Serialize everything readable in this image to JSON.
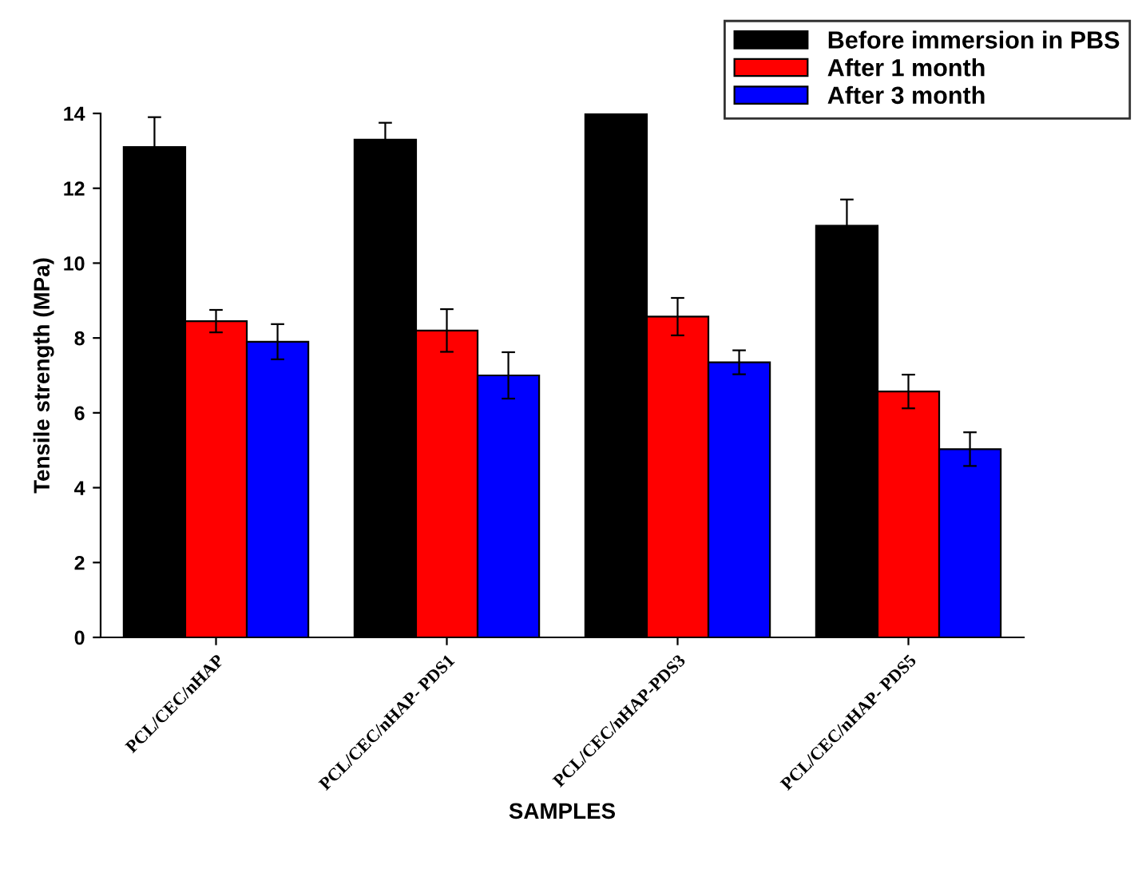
{
  "chart_data": {
    "type": "bar",
    "xlabel": "SAMPLES",
    "ylabel": "Tensile strength (MPa)",
    "categories": [
      "PCL/CEC/nHAP",
      "PCL/CEC/nHAP- PDS1",
      "PCL/CEC/nHAP-PDS3",
      "PCL/CEC/nHAP- PDS5"
    ],
    "series": [
      {
        "name": "Before immersion in PBS",
        "color": "#000000",
        "values": [
          13.1,
          13.3,
          14.0,
          11.0
        ],
        "errors": [
          0.8,
          0.45,
          null,
          0.7
        ]
      },
      {
        "name": "After 1 month",
        "color": "#ff0000",
        "values": [
          8.45,
          8.2,
          8.57,
          6.57
        ],
        "errors": [
          0.3,
          0.57,
          0.5,
          0.45
        ]
      },
      {
        "name": "After 3 month",
        "color": "#0000ff",
        "values": [
          7.9,
          7.0,
          7.35,
          5.03
        ],
        "errors": [
          0.47,
          0.62,
          0.32,
          0.45
        ]
      }
    ],
    "ylim": [
      0,
      14
    ],
    "yticks": [
      0,
      2,
      4,
      6,
      8,
      10,
      12,
      14
    ],
    "grid": false,
    "legend": "top right"
  }
}
